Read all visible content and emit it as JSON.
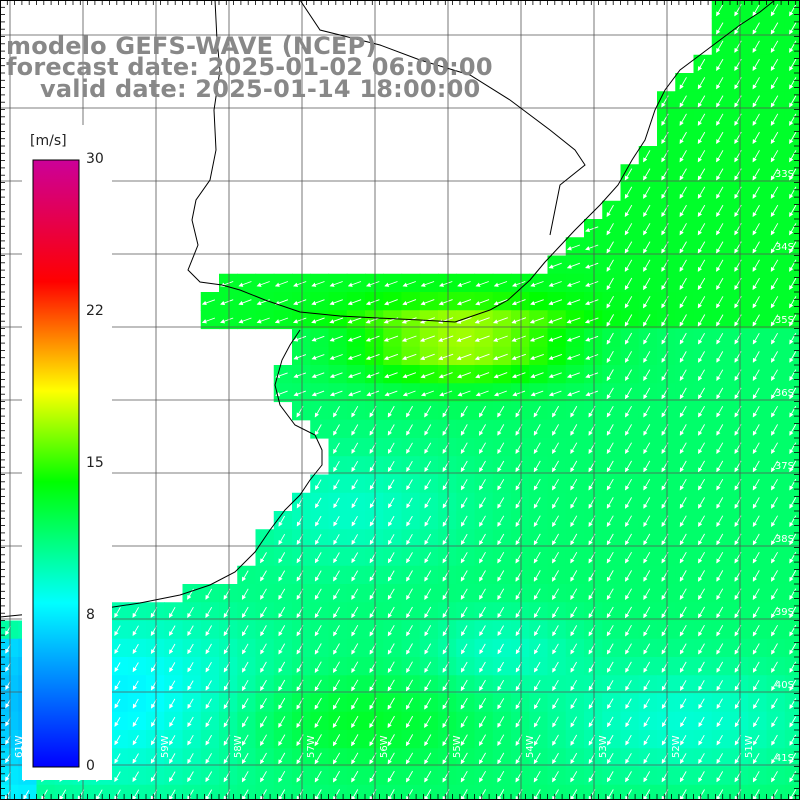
{
  "title": {
    "model": "modelo GEFS-WAVE (NCEP)",
    "forecast": "forecast date: 2025-01-02 06:00:00",
    "valid": "valid date: 2025-01-14 18:00:00"
  },
  "colorbar": {
    "unit": "[m/s]",
    "ticks": [
      "30",
      "22",
      "15",
      "8",
      "0"
    ],
    "tick_values": [
      30,
      22,
      15,
      8,
      0
    ],
    "range": [
      0,
      30
    ],
    "colors": [
      "#0000ff",
      "#00ffff",
      "#00ff00",
      "#ffff00",
      "#ff0000",
      "#cc0099"
    ]
  },
  "map": {
    "lat_labels": [
      "33S",
      "34S",
      "35S",
      "36S",
      "37S",
      "38S",
      "39S",
      "40S",
      "41S"
    ],
    "lat_values": [
      -33,
      -34,
      -35,
      -36,
      -37,
      -38,
      -39,
      -40,
      -41
    ],
    "lon_labels": [
      "61W",
      "60W",
      "59W",
      "58W",
      "57W",
      "56W",
      "55W",
      "54W",
      "53W",
      "52W",
      "51W"
    ],
    "lon_values": [
      -61,
      -60,
      -59,
      -58,
      -57,
      -56,
      -55,
      -54,
      -53,
      -52,
      -51
    ],
    "land_color": "#ffffff",
    "coast_color": "#000000",
    "grid_color": "#555555",
    "arrow_color": "#ffffff",
    "arrow_direction": "from north-east to south-west"
  }
}
